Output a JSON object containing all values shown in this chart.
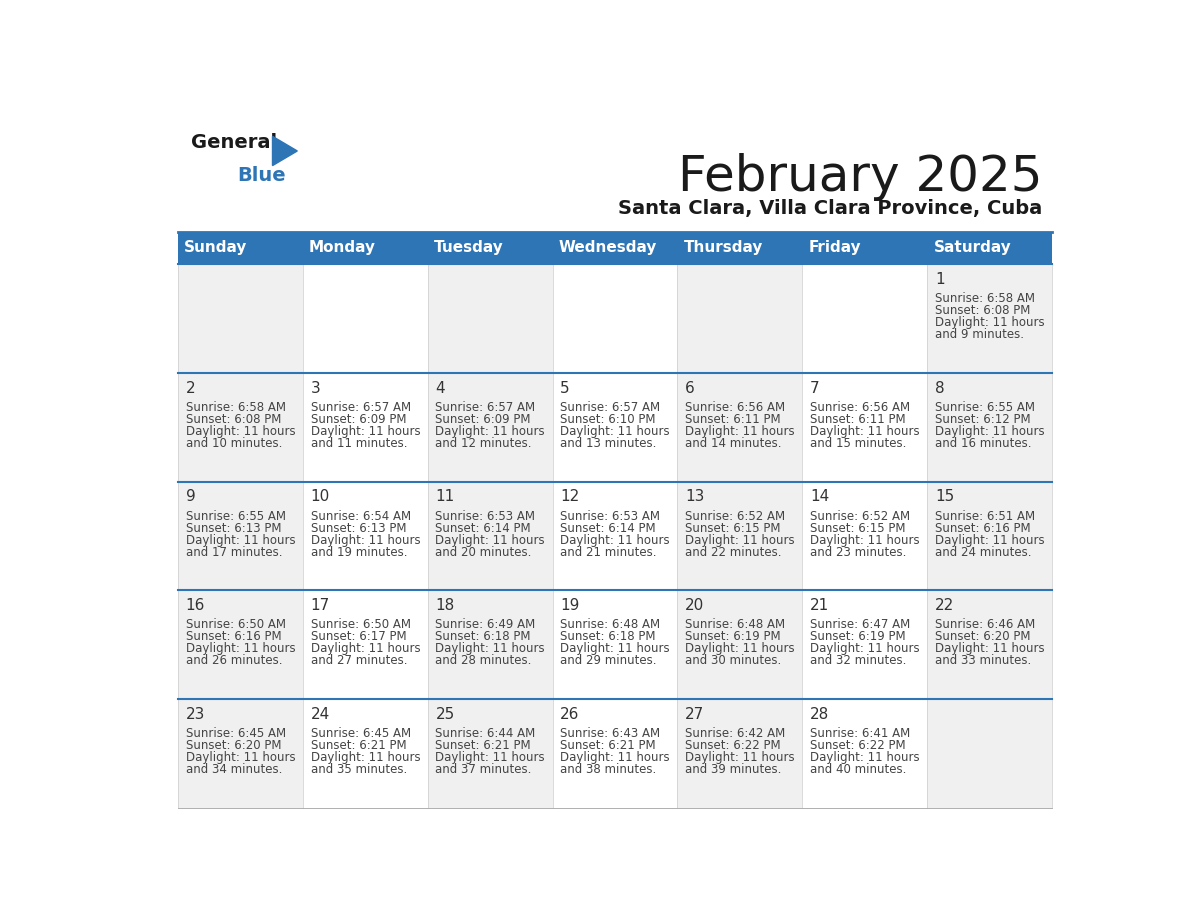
{
  "title": "February 2025",
  "subtitle": "Santa Clara, Villa Clara Province, Cuba",
  "header_bg_color": "#2E75B6",
  "header_text_color": "#FFFFFF",
  "cell_bg_even": "#F0F0F0",
  "cell_bg_odd": "#FFFFFF",
  "day_number_color": "#333333",
  "cell_text_color": "#444444",
  "grid_line_color": "#2E75B6",
  "cell_border_color": "#CCCCCC",
  "days_of_week": [
    "Sunday",
    "Monday",
    "Tuesday",
    "Wednesday",
    "Thursday",
    "Friday",
    "Saturday"
  ],
  "calendar_data": [
    [
      null,
      null,
      null,
      null,
      null,
      null,
      {
        "day": 1,
        "sunrise": "6:58 AM",
        "sunset": "6:08 PM",
        "daylight": "11 hours",
        "daylight2": "and 9 minutes."
      }
    ],
    [
      {
        "day": 2,
        "sunrise": "6:58 AM",
        "sunset": "6:08 PM",
        "daylight": "11 hours",
        "daylight2": "and 10 minutes."
      },
      {
        "day": 3,
        "sunrise": "6:57 AM",
        "sunset": "6:09 PM",
        "daylight": "11 hours",
        "daylight2": "and 11 minutes."
      },
      {
        "day": 4,
        "sunrise": "6:57 AM",
        "sunset": "6:09 PM",
        "daylight": "11 hours",
        "daylight2": "and 12 minutes."
      },
      {
        "day": 5,
        "sunrise": "6:57 AM",
        "sunset": "6:10 PM",
        "daylight": "11 hours",
        "daylight2": "and 13 minutes."
      },
      {
        "day": 6,
        "sunrise": "6:56 AM",
        "sunset": "6:11 PM",
        "daylight": "11 hours",
        "daylight2": "and 14 minutes."
      },
      {
        "day": 7,
        "sunrise": "6:56 AM",
        "sunset": "6:11 PM",
        "daylight": "11 hours",
        "daylight2": "and 15 minutes."
      },
      {
        "day": 8,
        "sunrise": "6:55 AM",
        "sunset": "6:12 PM",
        "daylight": "11 hours",
        "daylight2": "and 16 minutes."
      }
    ],
    [
      {
        "day": 9,
        "sunrise": "6:55 AM",
        "sunset": "6:13 PM",
        "daylight": "11 hours",
        "daylight2": "and 17 minutes."
      },
      {
        "day": 10,
        "sunrise": "6:54 AM",
        "sunset": "6:13 PM",
        "daylight": "11 hours",
        "daylight2": "and 19 minutes."
      },
      {
        "day": 11,
        "sunrise": "6:53 AM",
        "sunset": "6:14 PM",
        "daylight": "11 hours",
        "daylight2": "and 20 minutes."
      },
      {
        "day": 12,
        "sunrise": "6:53 AM",
        "sunset": "6:14 PM",
        "daylight": "11 hours",
        "daylight2": "and 21 minutes."
      },
      {
        "day": 13,
        "sunrise": "6:52 AM",
        "sunset": "6:15 PM",
        "daylight": "11 hours",
        "daylight2": "and 22 minutes."
      },
      {
        "day": 14,
        "sunrise": "6:52 AM",
        "sunset": "6:15 PM",
        "daylight": "11 hours",
        "daylight2": "and 23 minutes."
      },
      {
        "day": 15,
        "sunrise": "6:51 AM",
        "sunset": "6:16 PM",
        "daylight": "11 hours",
        "daylight2": "and 24 minutes."
      }
    ],
    [
      {
        "day": 16,
        "sunrise": "6:50 AM",
        "sunset": "6:16 PM",
        "daylight": "11 hours",
        "daylight2": "and 26 minutes."
      },
      {
        "day": 17,
        "sunrise": "6:50 AM",
        "sunset": "6:17 PM",
        "daylight": "11 hours",
        "daylight2": "and 27 minutes."
      },
      {
        "day": 18,
        "sunrise": "6:49 AM",
        "sunset": "6:18 PM",
        "daylight": "11 hours",
        "daylight2": "and 28 minutes."
      },
      {
        "day": 19,
        "sunrise": "6:48 AM",
        "sunset": "6:18 PM",
        "daylight": "11 hours",
        "daylight2": "and 29 minutes."
      },
      {
        "day": 20,
        "sunrise": "6:48 AM",
        "sunset": "6:19 PM",
        "daylight": "11 hours",
        "daylight2": "and 30 minutes."
      },
      {
        "day": 21,
        "sunrise": "6:47 AM",
        "sunset": "6:19 PM",
        "daylight": "11 hours",
        "daylight2": "and 32 minutes."
      },
      {
        "day": 22,
        "sunrise": "6:46 AM",
        "sunset": "6:20 PM",
        "daylight": "11 hours",
        "daylight2": "and 33 minutes."
      }
    ],
    [
      {
        "day": 23,
        "sunrise": "6:45 AM",
        "sunset": "6:20 PM",
        "daylight": "11 hours",
        "daylight2": "and 34 minutes."
      },
      {
        "day": 24,
        "sunrise": "6:45 AM",
        "sunset": "6:21 PM",
        "daylight": "11 hours",
        "daylight2": "and 35 minutes."
      },
      {
        "day": 25,
        "sunrise": "6:44 AM",
        "sunset": "6:21 PM",
        "daylight": "11 hours",
        "daylight2": "and 37 minutes."
      },
      {
        "day": 26,
        "sunrise": "6:43 AM",
        "sunset": "6:21 PM",
        "daylight": "11 hours",
        "daylight2": "and 38 minutes."
      },
      {
        "day": 27,
        "sunrise": "6:42 AM",
        "sunset": "6:22 PM",
        "daylight": "11 hours",
        "daylight2": "and 39 minutes."
      },
      {
        "day": 28,
        "sunrise": "6:41 AM",
        "sunset": "6:22 PM",
        "daylight": "11 hours",
        "daylight2": "and 40 minutes."
      },
      null
    ]
  ]
}
